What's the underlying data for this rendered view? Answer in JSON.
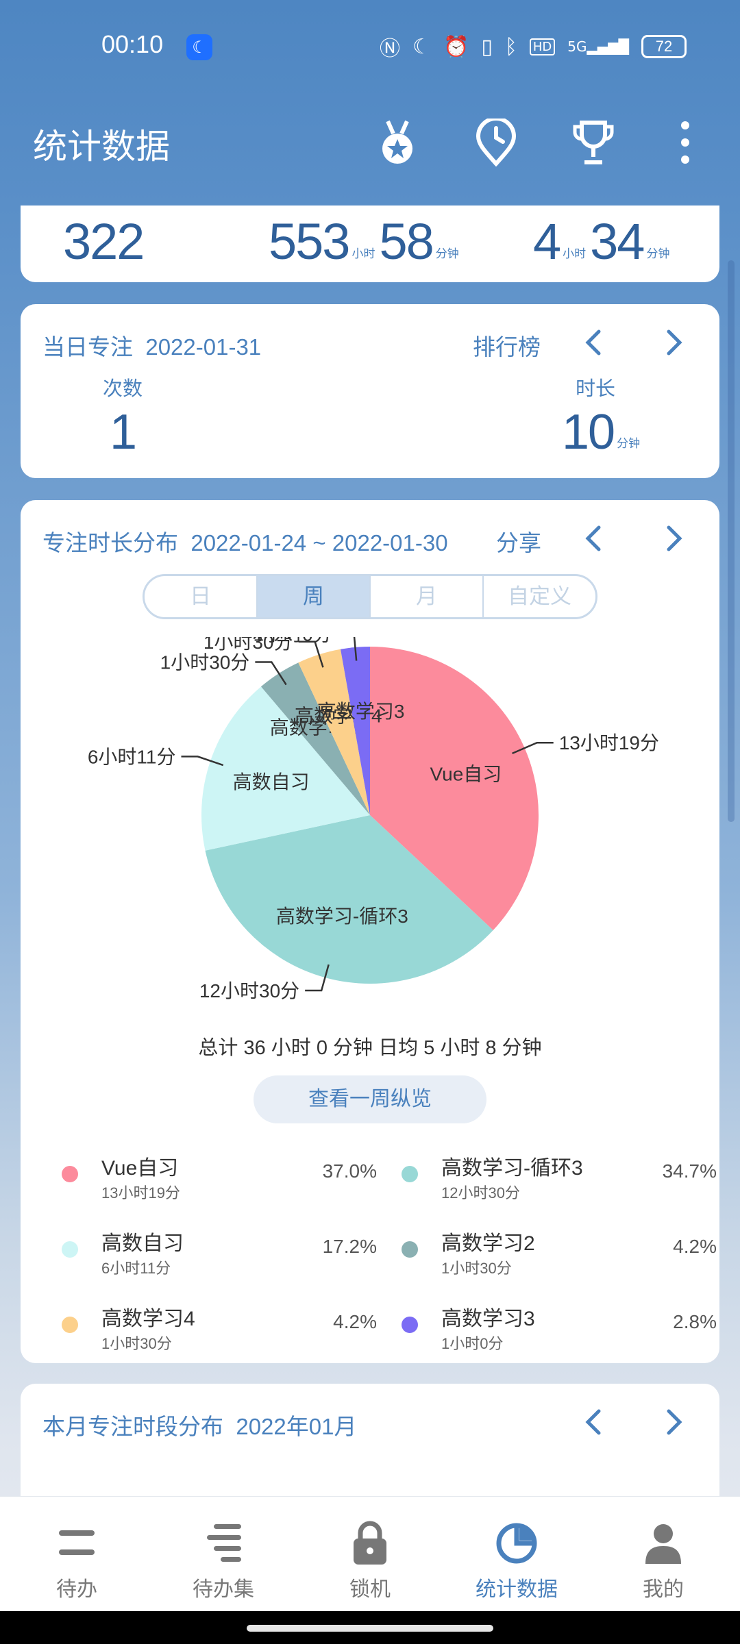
{
  "status": {
    "time": "00:10",
    "battery": "72",
    "network": "5G",
    "hd": "HD"
  },
  "app": {
    "title": "统计数据"
  },
  "summary": {
    "count": "322",
    "total_hours": "553",
    "total_hours_unit": "小时",
    "total_minutes": "58",
    "total_minutes_unit": "分钟",
    "avg_hours": "4",
    "avg_hours_unit": "小时",
    "avg_minutes": "34",
    "avg_minutes_unit": "分钟"
  },
  "daily": {
    "title": "当日专注",
    "date": "2022-01-31",
    "ranking": "排行榜",
    "count_label": "次数",
    "count": "1",
    "duration_label": "时长",
    "duration": "10",
    "duration_unit": "分钟"
  },
  "distribution": {
    "title": "专注时长分布",
    "range": "2022-01-24 ~ 2022-01-30",
    "share": "分享",
    "tabs": [
      "日",
      "周",
      "月",
      "自定义"
    ],
    "active_tab": "周",
    "total_text": "总计 36 小时 0 分钟 日均 5 小时 8 分钟",
    "overview_button": "查看一周纵览"
  },
  "chart_data": {
    "type": "pie",
    "slices": [
      {
        "label": "Vue自习",
        "duration": "13小时19分",
        "percent": "37.0%",
        "value": 37.0,
        "color": "#fc8b9c"
      },
      {
        "label": "高数学习-循环3",
        "duration": "12小时30分",
        "percent": "34.7%",
        "value": 34.7,
        "color": "#98d8d6"
      },
      {
        "label": "高数自习",
        "duration": "6小时11分",
        "percent": "17.2%",
        "value": 17.2,
        "color": "#cdf5f5"
      },
      {
        "label": "高数学习2",
        "duration": "1小时30分",
        "percent": "4.2%",
        "value": 4.2,
        "color": "#8ab0b2"
      },
      {
        "label": "高数学习4",
        "duration": "1小时30分",
        "percent": "4.2%",
        "value": 4.2,
        "color": "#fcd08b"
      },
      {
        "label": "高数学习3",
        "duration": "1小时0分",
        "percent": "2.8%",
        "value": 2.8,
        "color": "#7b6cf4"
      }
    ]
  },
  "monthly": {
    "title": "本月专注时段分布",
    "month": "2022年01月"
  },
  "bottom_nav": [
    {
      "label": "待办",
      "icon": "todo-icon"
    },
    {
      "label": "待办集",
      "icon": "todo-set-icon"
    },
    {
      "label": "锁机",
      "icon": "lock-icon"
    },
    {
      "label": "统计数据",
      "icon": "stats-pie-icon"
    },
    {
      "label": "我的",
      "icon": "profile-icon"
    }
  ]
}
